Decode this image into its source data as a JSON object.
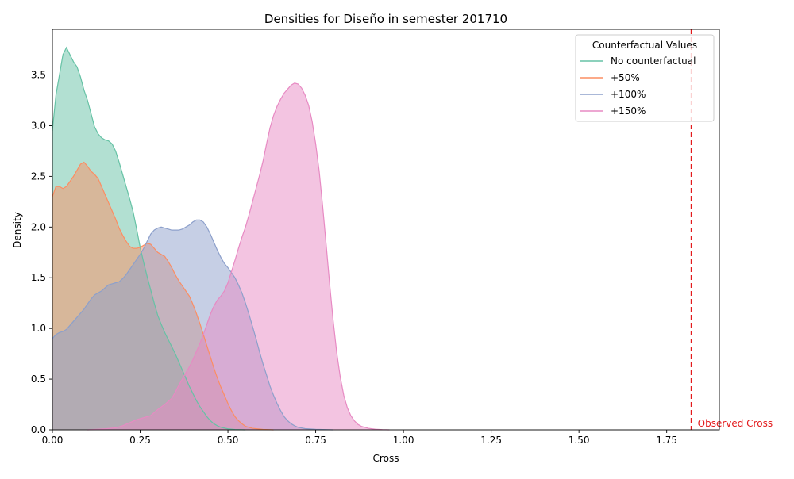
{
  "chart_data": {
    "type": "area",
    "title": "Densities for Diseño in semester 201710",
    "xlabel": "Cross",
    "ylabel": "Density",
    "xlim": [
      0,
      1.9
    ],
    "ylim": [
      0,
      3.95
    ],
    "x_ticks": [
      "0.00",
      "0.25",
      "0.50",
      "0.75",
      "1.00",
      "1.25",
      "1.50",
      "1.75"
    ],
    "y_ticks": [
      "0.0",
      "0.5",
      "1.0",
      "1.5",
      "2.0",
      "2.5",
      "3.0",
      "3.5"
    ],
    "grid": false,
    "legend": {
      "title": "Counterfactual Values",
      "placement": "top-right"
    },
    "series": [
      {
        "name": "No counterfactual",
        "color": "#66c2a5",
        "points": [
          [
            0,
            2.95
          ],
          [
            0.01,
            3.3
          ],
          [
            0.02,
            3.5
          ],
          [
            0.03,
            3.7
          ],
          [
            0.04,
            3.77
          ],
          [
            0.05,
            3.7
          ],
          [
            0.06,
            3.63
          ],
          [
            0.07,
            3.58
          ],
          [
            0.08,
            3.48
          ],
          [
            0.09,
            3.35
          ],
          [
            0.1,
            3.25
          ],
          [
            0.11,
            3.12
          ],
          [
            0.12,
            2.99
          ],
          [
            0.13,
            2.92
          ],
          [
            0.14,
            2.88
          ],
          [
            0.15,
            2.86
          ],
          [
            0.16,
            2.85
          ],
          [
            0.17,
            2.82
          ],
          [
            0.18,
            2.75
          ],
          [
            0.19,
            2.64
          ],
          [
            0.2,
            2.52
          ],
          [
            0.21,
            2.4
          ],
          [
            0.22,
            2.28
          ],
          [
            0.23,
            2.15
          ],
          [
            0.24,
            1.98
          ],
          [
            0.25,
            1.8
          ],
          [
            0.26,
            1.65
          ],
          [
            0.27,
            1.51
          ],
          [
            0.28,
            1.38
          ],
          [
            0.29,
            1.25
          ],
          [
            0.3,
            1.13
          ],
          [
            0.31,
            1.04
          ],
          [
            0.32,
            0.96
          ],
          [
            0.33,
            0.89
          ],
          [
            0.34,
            0.82
          ],
          [
            0.35,
            0.75
          ],
          [
            0.36,
            0.67
          ],
          [
            0.37,
            0.59
          ],
          [
            0.38,
            0.51
          ],
          [
            0.39,
            0.43
          ],
          [
            0.4,
            0.36
          ],
          [
            0.41,
            0.29
          ],
          [
            0.42,
            0.23
          ],
          [
            0.43,
            0.18
          ],
          [
            0.44,
            0.13
          ],
          [
            0.45,
            0.09
          ],
          [
            0.46,
            0.06
          ],
          [
            0.47,
            0.04
          ],
          [
            0.48,
            0.025
          ],
          [
            0.5,
            0.01
          ],
          [
            0.52,
            0.003
          ],
          [
            0.55,
            0
          ]
        ]
      },
      {
        "name": "+50%",
        "color": "#fc8d62",
        "points": [
          [
            0,
            2.3
          ],
          [
            0.01,
            2.4
          ],
          [
            0.02,
            2.4
          ],
          [
            0.03,
            2.38
          ],
          [
            0.04,
            2.4
          ],
          [
            0.05,
            2.45
          ],
          [
            0.06,
            2.5
          ],
          [
            0.07,
            2.56
          ],
          [
            0.08,
            2.62
          ],
          [
            0.09,
            2.64
          ],
          [
            0.1,
            2.6
          ],
          [
            0.11,
            2.55
          ],
          [
            0.12,
            2.52
          ],
          [
            0.13,
            2.48
          ],
          [
            0.14,
            2.4
          ],
          [
            0.15,
            2.32
          ],
          [
            0.16,
            2.24
          ],
          [
            0.17,
            2.16
          ],
          [
            0.18,
            2.08
          ],
          [
            0.19,
            1.99
          ],
          [
            0.2,
            1.92
          ],
          [
            0.21,
            1.86
          ],
          [
            0.22,
            1.81
          ],
          [
            0.23,
            1.79
          ],
          [
            0.24,
            1.79
          ],
          [
            0.25,
            1.8
          ],
          [
            0.26,
            1.82
          ],
          [
            0.27,
            1.84
          ],
          [
            0.28,
            1.83
          ],
          [
            0.29,
            1.79
          ],
          [
            0.3,
            1.75
          ],
          [
            0.31,
            1.73
          ],
          [
            0.32,
            1.71
          ],
          [
            0.33,
            1.66
          ],
          [
            0.34,
            1.6
          ],
          [
            0.35,
            1.53
          ],
          [
            0.36,
            1.47
          ],
          [
            0.37,
            1.42
          ],
          [
            0.38,
            1.37
          ],
          [
            0.39,
            1.32
          ],
          [
            0.4,
            1.24
          ],
          [
            0.41,
            1.15
          ],
          [
            0.42,
            1.05
          ],
          [
            0.43,
            0.94
          ],
          [
            0.44,
            0.83
          ],
          [
            0.45,
            0.72
          ],
          [
            0.46,
            0.61
          ],
          [
            0.47,
            0.51
          ],
          [
            0.48,
            0.42
          ],
          [
            0.49,
            0.34
          ],
          [
            0.5,
            0.26
          ],
          [
            0.51,
            0.19
          ],
          [
            0.52,
            0.13
          ],
          [
            0.53,
            0.09
          ],
          [
            0.54,
            0.06
          ],
          [
            0.55,
            0.035
          ],
          [
            0.57,
            0.015
          ],
          [
            0.6,
            0.004
          ],
          [
            0.63,
            0
          ]
        ]
      },
      {
        "name": "+100%",
        "color": "#8da0cb",
        "points": [
          [
            0,
            0.9
          ],
          [
            0.01,
            0.94
          ],
          [
            0.02,
            0.96
          ],
          [
            0.03,
            0.97
          ],
          [
            0.04,
            0.99
          ],
          [
            0.05,
            1.03
          ],
          [
            0.06,
            1.07
          ],
          [
            0.07,
            1.11
          ],
          [
            0.08,
            1.15
          ],
          [
            0.09,
            1.19
          ],
          [
            0.1,
            1.24
          ],
          [
            0.11,
            1.29
          ],
          [
            0.12,
            1.33
          ],
          [
            0.13,
            1.35
          ],
          [
            0.14,
            1.37
          ],
          [
            0.15,
            1.4
          ],
          [
            0.16,
            1.43
          ],
          [
            0.17,
            1.44
          ],
          [
            0.18,
            1.45
          ],
          [
            0.19,
            1.46
          ],
          [
            0.2,
            1.49
          ],
          [
            0.21,
            1.53
          ],
          [
            0.22,
            1.58
          ],
          [
            0.23,
            1.63
          ],
          [
            0.24,
            1.68
          ],
          [
            0.25,
            1.73
          ],
          [
            0.26,
            1.79
          ],
          [
            0.27,
            1.86
          ],
          [
            0.28,
            1.93
          ],
          [
            0.29,
            1.97
          ],
          [
            0.3,
            1.99
          ],
          [
            0.31,
            2.0
          ],
          [
            0.32,
            1.99
          ],
          [
            0.33,
            1.98
          ],
          [
            0.34,
            1.97
          ],
          [
            0.35,
            1.97
          ],
          [
            0.36,
            1.97
          ],
          [
            0.37,
            1.98
          ],
          [
            0.38,
            2.0
          ],
          [
            0.39,
            2.02
          ],
          [
            0.4,
            2.05
          ],
          [
            0.41,
            2.07
          ],
          [
            0.42,
            2.07
          ],
          [
            0.43,
            2.05
          ],
          [
            0.44,
            2.0
          ],
          [
            0.45,
            1.93
          ],
          [
            0.46,
            1.85
          ],
          [
            0.47,
            1.77
          ],
          [
            0.48,
            1.7
          ],
          [
            0.49,
            1.64
          ],
          [
            0.5,
            1.6
          ],
          [
            0.51,
            1.55
          ],
          [
            0.52,
            1.5
          ],
          [
            0.53,
            1.43
          ],
          [
            0.54,
            1.35
          ],
          [
            0.55,
            1.25
          ],
          [
            0.56,
            1.14
          ],
          [
            0.57,
            1.02
          ],
          [
            0.58,
            0.9
          ],
          [
            0.59,
            0.77
          ],
          [
            0.6,
            0.65
          ],
          [
            0.61,
            0.54
          ],
          [
            0.62,
            0.43
          ],
          [
            0.63,
            0.34
          ],
          [
            0.64,
            0.26
          ],
          [
            0.65,
            0.19
          ],
          [
            0.66,
            0.13
          ],
          [
            0.67,
            0.09
          ],
          [
            0.68,
            0.06
          ],
          [
            0.69,
            0.04
          ],
          [
            0.7,
            0.025
          ],
          [
            0.72,
            0.012
          ],
          [
            0.75,
            0.005
          ],
          [
            0.78,
            0.002
          ],
          [
            0.8,
            0
          ]
        ]
      },
      {
        "name": "+150%",
        "color": "#e78ac3",
        "points": [
          [
            0.1,
            0
          ],
          [
            0.15,
            0.01
          ],
          [
            0.18,
            0.02
          ],
          [
            0.2,
            0.04
          ],
          [
            0.22,
            0.07
          ],
          [
            0.24,
            0.1
          ],
          [
            0.26,
            0.12
          ],
          [
            0.28,
            0.14
          ],
          [
            0.3,
            0.2
          ],
          [
            0.32,
            0.25
          ],
          [
            0.34,
            0.31
          ],
          [
            0.35,
            0.37
          ],
          [
            0.36,
            0.44
          ],
          [
            0.37,
            0.5
          ],
          [
            0.38,
            0.56
          ],
          [
            0.39,
            0.62
          ],
          [
            0.4,
            0.69
          ],
          [
            0.41,
            0.77
          ],
          [
            0.42,
            0.85
          ],
          [
            0.43,
            0.94
          ],
          [
            0.44,
            1.04
          ],
          [
            0.45,
            1.14
          ],
          [
            0.46,
            1.22
          ],
          [
            0.47,
            1.28
          ],
          [
            0.48,
            1.32
          ],
          [
            0.49,
            1.37
          ],
          [
            0.5,
            1.45
          ],
          [
            0.51,
            1.56
          ],
          [
            0.52,
            1.67
          ],
          [
            0.53,
            1.79
          ],
          [
            0.54,
            1.9
          ],
          [
            0.55,
            2.0
          ],
          [
            0.56,
            2.12
          ],
          [
            0.57,
            2.25
          ],
          [
            0.58,
            2.38
          ],
          [
            0.59,
            2.51
          ],
          [
            0.6,
            2.65
          ],
          [
            0.61,
            2.82
          ],
          [
            0.62,
            2.98
          ],
          [
            0.63,
            3.1
          ],
          [
            0.64,
            3.19
          ],
          [
            0.65,
            3.26
          ],
          [
            0.66,
            3.32
          ],
          [
            0.67,
            3.36
          ],
          [
            0.68,
            3.4
          ],
          [
            0.69,
            3.42
          ],
          [
            0.7,
            3.41
          ],
          [
            0.71,
            3.37
          ],
          [
            0.72,
            3.3
          ],
          [
            0.73,
            3.2
          ],
          [
            0.74,
            3.04
          ],
          [
            0.75,
            2.82
          ],
          [
            0.76,
            2.55
          ],
          [
            0.77,
            2.2
          ],
          [
            0.78,
            1.82
          ],
          [
            0.79,
            1.43
          ],
          [
            0.8,
            1.07
          ],
          [
            0.81,
            0.76
          ],
          [
            0.82,
            0.52
          ],
          [
            0.83,
            0.34
          ],
          [
            0.84,
            0.22
          ],
          [
            0.85,
            0.14
          ],
          [
            0.86,
            0.09
          ],
          [
            0.87,
            0.055
          ],
          [
            0.88,
            0.035
          ],
          [
            0.9,
            0.015
          ],
          [
            0.92,
            0.006
          ],
          [
            0.94,
            0.002
          ],
          [
            0.96,
            0
          ]
        ]
      }
    ],
    "annotations": [
      {
        "type": "vline",
        "x": 1.82,
        "color": "#e31a1c",
        "style": "dashed",
        "label": "Observed Cross"
      }
    ]
  }
}
